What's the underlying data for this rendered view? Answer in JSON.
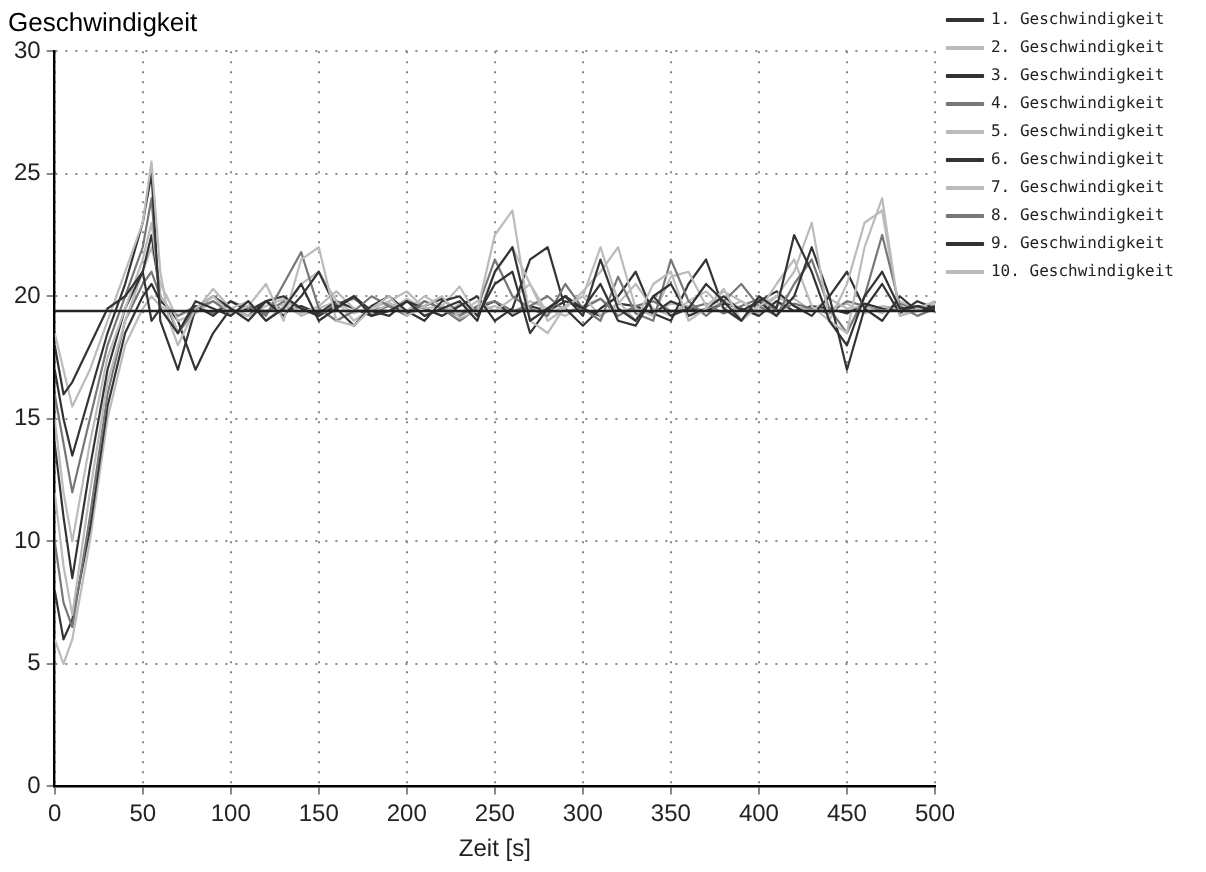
{
  "chart_data": {
    "type": "line",
    "title": "Geschwindigkeit",
    "xlabel": "Zeit [s]",
    "x": [
      0,
      5,
      10,
      20,
      30,
      40,
      50,
      55,
      60,
      65,
      70,
      80,
      90,
      100,
      110,
      120,
      130,
      140,
      150,
      160,
      170,
      180,
      190,
      200,
      210,
      220,
      230,
      240,
      250,
      260,
      270,
      280,
      290,
      300,
      310,
      320,
      330,
      340,
      350,
      360,
      370,
      380,
      390,
      400,
      410,
      420,
      430,
      440,
      450,
      460,
      470,
      480,
      490,
      500
    ],
    "xlim": [
      0,
      500
    ],
    "xticks": [
      0,
      50,
      100,
      150,
      200,
      250,
      300,
      350,
      400,
      450,
      500
    ],
    "ylim": [
      0,
      30
    ],
    "yticks": [
      0,
      5,
      10,
      15,
      20,
      25,
      30
    ],
    "grid": true,
    "legend": "right",
    "marker": "none",
    "line_style": "solid",
    "ref_lines": [
      {
        "axis": "y",
        "value": 19.4,
        "color": "#222222"
      }
    ],
    "series": [
      {
        "name": "1. Geschwindigkeit",
        "color": "#333333",
        "values": [
          18,
          16,
          16.5,
          18,
          19.5,
          20,
          21,
          19,
          19.5,
          19,
          18.5,
          19.8,
          19.5,
          19.2,
          19.8,
          19,
          19.5,
          20.5,
          19,
          19.5,
          20,
          19.2,
          19.4,
          19.8,
          19.2,
          19.5,
          19.8,
          19,
          21,
          22,
          19,
          19.5,
          20,
          19.2,
          21.5,
          19.5,
          19,
          20,
          19.2,
          19.5,
          20.5,
          19.8,
          19,
          20,
          19.5,
          22.5,
          21,
          19,
          18,
          20,
          21,
          19.5,
          19.6,
          19.4
        ]
      },
      {
        "name": "2. Geschwindigkeit",
        "color": "#bbbbbb",
        "values": [
          18.5,
          17,
          15.5,
          17,
          19,
          21,
          23,
          25.5,
          21,
          19,
          18,
          19.5,
          20,
          19.3,
          19.6,
          20.5,
          19,
          21.5,
          22,
          19,
          18.8,
          19.5,
          20,
          19.2,
          19.6,
          20,
          19.1,
          19.4,
          22.5,
          23.5,
          19,
          18.5,
          19.6,
          20,
          22,
          19.8,
          19,
          20.5,
          21,
          19,
          19.5,
          20.3,
          19,
          19.6,
          20,
          21,
          23,
          19,
          18.5,
          22,
          24,
          19.2,
          19.5,
          19.8
        ]
      },
      {
        "name": "3. Geschwindigkeit",
        "color": "#333333",
        "values": [
          17,
          15,
          13.5,
          16,
          18.5,
          20.5,
          23,
          25,
          19,
          18,
          17,
          19.5,
          20,
          19.5,
          19,
          19.8,
          19.2,
          20,
          21,
          19.5,
          18.8,
          19.6,
          20,
          19.4,
          19,
          19.8,
          20,
          19.2,
          20.5,
          21,
          18.5,
          19.5,
          20,
          19.5,
          20.5,
          19,
          18.8,
          20,
          20.5,
          19.2,
          19.5,
          20,
          19.4,
          19.8,
          19.2,
          20,
          22,
          20,
          17,
          19.5,
          20.5,
          19.3,
          19.8,
          19.5
        ]
      },
      {
        "name": "4. Geschwindigkeit",
        "color": "#777777",
        "values": [
          16,
          14,
          12,
          15,
          18,
          20,
          22,
          24,
          19.5,
          19,
          18.5,
          19.5,
          19.8,
          19.3,
          19.6,
          19.2,
          20.5,
          21.8,
          19.5,
          19,
          19.4,
          20,
          19.6,
          19.2,
          19.8,
          19.5,
          19,
          19.5,
          21.5,
          20,
          19.5,
          19.2,
          20.5,
          19.5,
          19,
          20.8,
          19.3,
          19,
          21.5,
          19.8,
          19.2,
          19.8,
          20.5,
          19.6,
          19.2,
          20.5,
          21.5,
          19.5,
          18.5,
          20,
          22.5,
          19.6,
          19.2,
          19.5
        ]
      },
      {
        "name": "5. Geschwindigkeit",
        "color": "#bbbbbb",
        "values": [
          15,
          12,
          10,
          14,
          17.5,
          19.5,
          21.5,
          23,
          20,
          19.5,
          18.5,
          19.4,
          20.3,
          19.5,
          19.8,
          19,
          19.6,
          20.5,
          21,
          19.8,
          19,
          19.5,
          19.8,
          20.2,
          19.5,
          19.6,
          20.4,
          19.2,
          21,
          22,
          20.5,
          19,
          19.5,
          20.2,
          21,
          22,
          19.5,
          19.2,
          20.8,
          21,
          19.6,
          20.2,
          19.8,
          19.4,
          20.5,
          21.5,
          19.6,
          19,
          20.5,
          23,
          23.5,
          19.2,
          19.4,
          19.8
        ]
      },
      {
        "name": "6. Geschwindigkeit",
        "color": "#333333",
        "values": [
          14,
          11,
          8.5,
          13,
          17,
          19.5,
          21,
          22.5,
          20,
          19.4,
          18.5,
          19.6,
          19.2,
          19.8,
          19.4,
          19.8,
          20,
          19.5,
          19.2,
          19.6,
          20,
          19.4,
          19.2,
          19.8,
          19.5,
          19.2,
          19.6,
          20,
          19,
          19.5,
          21.5,
          22,
          19.5,
          18.8,
          19.5,
          20,
          21,
          19.3,
          19,
          20.5,
          21.5,
          19.5,
          19,
          19.8,
          20.2,
          19.6,
          19.2,
          20,
          21,
          19.5,
          19,
          20,
          19.4,
          19.6
        ]
      },
      {
        "name": "7. Geschwindigkeit",
        "color": "#bbbbbb",
        "values": [
          12,
          9,
          7,
          12,
          16.5,
          19,
          21,
          22,
          20.5,
          19.8,
          19,
          19.3,
          19.8,
          19.5,
          19.2,
          19.6,
          19.9,
          19.3,
          19.6,
          20.2,
          19.5,
          19.3,
          19.7,
          19.4,
          20,
          19.6,
          19.3,
          19.8,
          19.4,
          19.9,
          20.5,
          19.3,
          19.6,
          20,
          19.2,
          19.7,
          20.5,
          19.5,
          19.2,
          19.8,
          20.2,
          19.5,
          19.8,
          19.3,
          20,
          19.6,
          19.4,
          19.9,
          19.5,
          19.6,
          19.3,
          19.8,
          19.5,
          19.7
        ]
      },
      {
        "name": "8. Geschwindigkeit",
        "color": "#777777",
        "values": [
          10,
          7.5,
          6.5,
          11,
          16,
          19,
          20.5,
          21,
          20,
          19.5,
          19.2,
          19.6,
          19.3,
          19.8,
          19.5,
          19.3,
          19.8,
          19.5,
          19.2,
          19.7,
          19.9,
          19.4,
          19.6,
          19.3,
          19.8,
          19.5,
          19.2,
          19.6,
          19.8,
          19.4,
          19.6,
          20,
          19.4,
          19.5,
          19.9,
          19.2,
          19.6,
          19.8,
          19.4,
          19.5,
          19.7,
          19.3,
          19.6,
          19.9,
          19.4,
          19.7,
          19.5,
          19.3,
          19.8,
          19.6,
          19.4,
          19.7,
          19.5,
          19.4
        ]
      },
      {
        "name": "9. Geschwindigkeit",
        "color": "#333333",
        "values": [
          8,
          6,
          6.8,
          10.5,
          15.5,
          18.5,
          20,
          20.5,
          19.8,
          19.5,
          19,
          17,
          18.5,
          19.5,
          19.2,
          19.8,
          19.4,
          19.6,
          19.3,
          19.8,
          19.5,
          19.2,
          19.7,
          19.4,
          19.6,
          19.9,
          19.3,
          19.5,
          19.8,
          19.2,
          19.6,
          19.4,
          19.8,
          19.5,
          19.2,
          19.7,
          19.6,
          19.3,
          19.8,
          19.5,
          19.4,
          19.7,
          19.5,
          19.2,
          19.8,
          19.4,
          19.6,
          19.5,
          19.3,
          19.7,
          19.5,
          19.4,
          19.6,
          19.5
        ]
      },
      {
        "name": "10. Geschwindigkeit",
        "color": "#bbbbbb",
        "values": [
          6,
          5,
          6,
          10,
          15,
          18,
          19.5,
          20,
          19.6,
          19.4,
          19.2,
          19.5,
          19.8,
          19.3,
          19.6,
          19.4,
          19.7,
          19.2,
          19.5,
          19.8,
          19.3,
          19.6,
          19.4,
          19.9,
          19.5,
          19.2,
          19.7,
          19.4,
          19.6,
          19.3,
          19.8,
          19.5,
          19.2,
          19.6,
          19.9,
          19.4,
          19.5,
          19.3,
          19.7,
          19.6,
          19.4,
          19.8,
          19.5,
          19.3,
          19.6,
          19.9,
          19.4,
          19.5,
          19.7,
          19.3,
          19.6,
          19.5,
          19.4,
          19.5
        ]
      }
    ]
  }
}
